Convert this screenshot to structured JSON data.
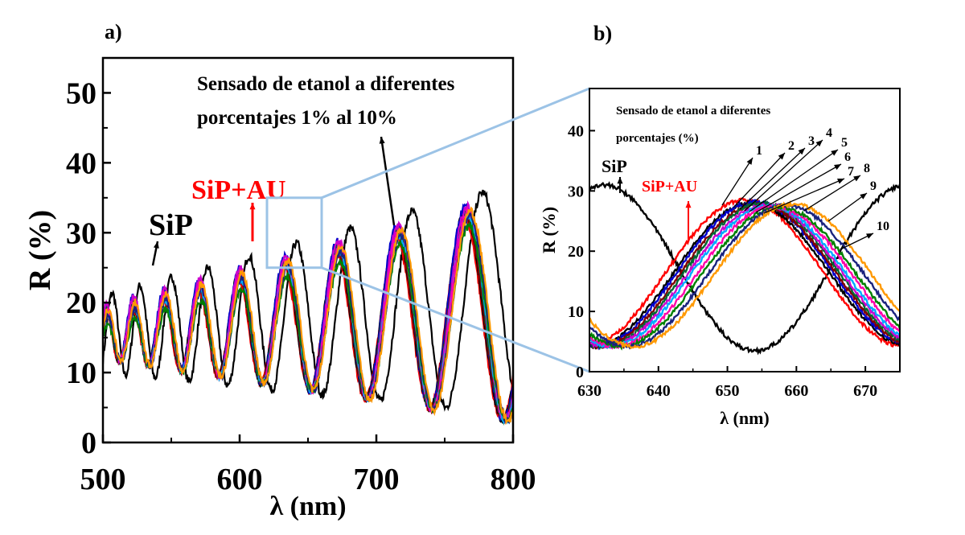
{
  "chart_data": [
    {
      "type": "line",
      "panel_label": "a)",
      "xlabel": "λ (nm)",
      "ylabel": "R (%)",
      "xlim": [
        500,
        800
      ],
      "ylim": [
        0,
        55
      ],
      "xticks": [
        500,
        600,
        700,
        800
      ],
      "yticks": [
        0,
        10,
        20,
        30,
        40,
        50
      ],
      "annotation": [
        "Sensado de etanol a diferentes",
        "porcentajes 1% al 10%"
      ],
      "series": [
        {
          "name": "SiP",
          "color": "#000000"
        },
        {
          "name": "SiP+AU",
          "color": "#ff0000"
        }
      ],
      "sensing_colors": [
        "#ff0000",
        "#000000",
        "#0000cc",
        "#7f0000",
        "#006633",
        "#cc00cc",
        "#00aaff",
        "#ff00aa",
        "#008000",
        "#1a237e",
        "#ff9900"
      ],
      "zoom_region": {
        "x": [
          620,
          660
        ],
        "y": [
          25,
          35
        ]
      }
    },
    {
      "type": "line",
      "panel_label": "b)",
      "xlabel": "λ (nm)",
      "ylabel": "R (%)",
      "xlim": [
        630,
        675
      ],
      "ylim": [
        0,
        47
      ],
      "xticks": [
        630,
        640,
        650,
        660,
        670
      ],
      "yticks": [
        0,
        10,
        20,
        30,
        40
      ],
      "annotation": [
        "Sensado de etanol a diferentes",
        "porcentajes (%)"
      ],
      "series": [
        {
          "name": "SiP",
          "color": "#000000"
        },
        {
          "name": "SiP+AU",
          "color": "#ff0000"
        }
      ],
      "curve_labels": [
        "1",
        "2",
        "3",
        "4",
        "5",
        "6",
        "7",
        "8",
        "9",
        "10"
      ],
      "peak_positions_nm": [
        652.5,
        653.5,
        654.0,
        654.5,
        655.0,
        655.5,
        656.0,
        656.8,
        657.5,
        658.5,
        659.5
      ],
      "peak_values": [
        28.5,
        28.0,
        28.2,
        27.8,
        27.9,
        27.6,
        27.5,
        27.4,
        27.3,
        27.6,
        27.8
      ],
      "sip_reference": {
        "peak_nm": 632,
        "peak_value": 31,
        "min_nm": 654,
        "min_value": 3.5,
        "end_value": 31.5
      }
    }
  ]
}
